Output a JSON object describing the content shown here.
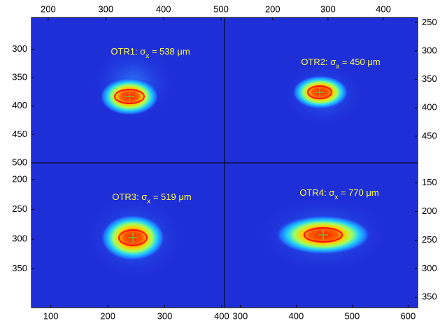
{
  "chart_data": [
    {
      "type": "image",
      "annotation": {
        "prefix": "OTR1: σ",
        "subscript": "x",
        "suffix": " = 538 μm"
      },
      "xlim": [
        171,
        506
      ],
      "xticks": [
        200,
        300,
        400,
        500
      ],
      "xaxis_position": "top",
      "ylim": [
        244,
        500
      ],
      "yticks": [
        300,
        350,
        400,
        450,
        500
      ],
      "yaxis_position": "left",
      "y_inverted": true
    },
    {
      "type": "image",
      "annotation": {
        "prefix": "OTR2: σ",
        "subscript": "x",
        "suffix": " = 450 μm"
      },
      "xlim": [
        113,
        462
      ],
      "xticks": [
        200,
        300,
        400
      ],
      "xaxis_position": "top",
      "ylim": [
        241,
        497
      ],
      "yticks": [
        250,
        300,
        350,
        400,
        450
      ],
      "yaxis_position": "right",
      "y_inverted": true
    },
    {
      "type": "image",
      "annotation": {
        "prefix": "OTR3: σ",
        "subscript": "x",
        "suffix": " = 519 μm"
      },
      "xlim": [
        66,
        405
      ],
      "xticks": [
        100,
        200,
        300,
        400
      ],
      "xaxis_position": "bottom",
      "ylim": [
        172,
        415
      ],
      "yticks": [
        200,
        250,
        300,
        350
      ],
      "yaxis_position": "left",
      "y_inverted": true
    },
    {
      "type": "image",
      "annotation": {
        "prefix": "OTR4: σ",
        "subscript": "x",
        "suffix": " = 770 μm"
      },
      "xlim": [
        272,
        617
      ],
      "xticks": [
        300,
        400,
        500,
        600
      ],
      "xaxis_position": "bottom",
      "ylim": [
        115,
        368
      ],
      "yticks": [
        150,
        200,
        250,
        300,
        350
      ],
      "yaxis_position": "right",
      "y_inverted": true
    }
  ]
}
